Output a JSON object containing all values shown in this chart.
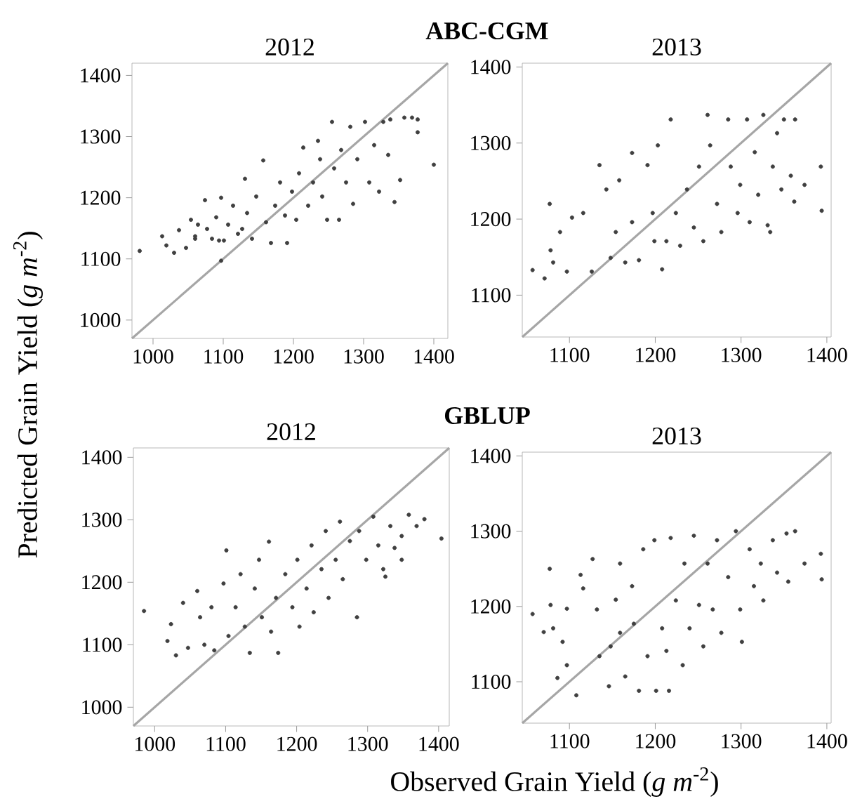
{
  "chart_data": [
    {
      "type": "scatter",
      "title": "2012",
      "ylabel": "Predicted Grain Yield (*g m*$^{-2}$)",
      "annotations": [
        "ABC-CGM"
      ],
      "marker": "circle",
      "xlim": [
        970,
        1420
      ],
      "ylim": [
        970,
        1420
      ],
      "xticks": [
        1000,
        1100,
        1200,
        1300,
        1400
      ],
      "yticks": [
        1000,
        1100,
        1200,
        1300,
        1400
      ],
      "series": [
        {
          "color": "#404040",
          "x": [
            981,
            1013,
            1019,
            1030,
            1037,
            1047,
            1054,
            1060,
            1064,
            1074,
            1077,
            1084,
            1090,
            1097,
            1097,
            1101,
            1107,
            1114,
            1121,
            1131,
            1134,
            1141,
            1147,
            1157,
            1161,
            1168,
            1174,
            1181,
            1188,
            1191,
            1198,
            1204,
            1208,
            1214,
            1221,
            1228,
            1235,
            1238,
            1241,
            1248,
            1255,
            1258,
            1265,
            1268,
            1275,
            1281,
            1285,
            1291,
            1302,
            1308,
            1315,
            1322,
            1328,
            1335,
            1338,
            1344,
            1352,
            1358,
            1369,
            1377,
            1377,
            1400,
            1060,
            1127,
            1094
          ],
          "values": [
            1113,
            1137,
            1122,
            1110,
            1147,
            1118,
            1164,
            1133,
            1156,
            1196,
            1149,
            1133,
            1168,
            1097,
            1200,
            1130,
            1156,
            1187,
            1141,
            1231,
            1175,
            1133,
            1202,
            1261,
            1160,
            1126,
            1187,
            1225,
            1171,
            1126,
            1210,
            1164,
            1240,
            1282,
            1187,
            1225,
            1293,
            1263,
            1202,
            1164,
            1324,
            1248,
            1164,
            1278,
            1225,
            1316,
            1190,
            1263,
            1324,
            1225,
            1286,
            1210,
            1324,
            1270,
            1328,
            1193,
            1229,
            1331,
            1331,
            1328,
            1307,
            1254,
            1137,
            1149,
            1130
          ]
        },
        {
          "type": "line",
          "marker": "none",
          "color": "#a6a6a6",
          "x": [
            970,
            1420
          ],
          "values": [
            970,
            1420
          ]
        }
      ]
    },
    {
      "type": "scatter",
      "title": "2013",
      "marker": "circle",
      "xlim": [
        1045,
        1405
      ],
      "ylim": [
        1045,
        1405
      ],
      "xticks": [
        1100,
        1200,
        1300,
        1400
      ],
      "yticks": [
        1100,
        1200,
        1300,
        1400
      ],
      "series": [
        {
          "color": "#404040",
          "x": [
            1057,
            1071,
            1077,
            1078,
            1081,
            1089,
            1097,
            1103,
            1116,
            1126,
            1135,
            1143,
            1148,
            1154,
            1158,
            1165,
            1173,
            1173,
            1181,
            1191,
            1197,
            1199,
            1203,
            1208,
            1213,
            1218,
            1224,
            1229,
            1237,
            1245,
            1251,
            1256,
            1261,
            1264,
            1272,
            1277,
            1285,
            1288,
            1296,
            1299,
            1307,
            1310,
            1316,
            1320,
            1326,
            1331,
            1334,
            1337,
            1342,
            1347,
            1350,
            1358,
            1362,
            1363,
            1374,
            1393,
            1394
          ],
          "values": [
            1133,
            1122,
            1220,
            1159,
            1143,
            1183,
            1131,
            1202,
            1208,
            1131,
            1271,
            1239,
            1149,
            1183,
            1251,
            1143,
            1287,
            1196,
            1146,
            1271,
            1208,
            1171,
            1297,
            1134,
            1171,
            1331,
            1208,
            1165,
            1239,
            1189,
            1269,
            1171,
            1337,
            1297,
            1220,
            1183,
            1331,
            1269,
            1208,
            1245,
            1331,
            1196,
            1288,
            1232,
            1337,
            1192,
            1183,
            1269,
            1313,
            1239,
            1331,
            1257,
            1223,
            1331,
            1245,
            1269,
            1211
          ]
        },
        {
          "type": "line",
          "marker": "none",
          "color": "#a6a6a6",
          "x": [
            1045,
            1405
          ],
          "values": [
            1045,
            1405
          ]
        }
      ]
    },
    {
      "type": "scatter",
      "title": "2012",
      "xlabel": "Observed Grain Yield (*g m*$^{-2}$)",
      "annotations": [
        "GBLUP"
      ],
      "marker": "circle",
      "xlim": [
        970,
        1415
      ],
      "ylim": [
        970,
        1415
      ],
      "xticks": [
        1000,
        1100,
        1200,
        1300,
        1400
      ],
      "yticks": [
        1000,
        1100,
        1200,
        1300,
        1400
      ],
      "series": [
        {
          "color": "#404040",
          "x": [
            985,
            1018,
            1023,
            1030,
            1040,
            1047,
            1060,
            1064,
            1070,
            1080,
            1084,
            1097,
            1101,
            1104,
            1114,
            1121,
            1127,
            1134,
            1141,
            1147,
            1151,
            1161,
            1164,
            1171,
            1174,
            1184,
            1194,
            1201,
            1204,
            1214,
            1221,
            1224,
            1235,
            1241,
            1245,
            1255,
            1261,
            1265,
            1275,
            1285,
            1288,
            1298,
            1308,
            1315,
            1322,
            1332,
            1338,
            1348,
            1358,
            1369,
            1380,
            1404,
            1348,
            1325
          ],
          "values": [
            1154,
            1106,
            1133,
            1083,
            1167,
            1095,
            1186,
            1144,
            1100,
            1160,
            1091,
            1198,
            1251,
            1114,
            1160,
            1213,
            1129,
            1087,
            1190,
            1236,
            1144,
            1265,
            1121,
            1175,
            1087,
            1213,
            1160,
            1236,
            1129,
            1190,
            1259,
            1152,
            1221,
            1282,
            1175,
            1236,
            1297,
            1205,
            1266,
            1144,
            1282,
            1236,
            1305,
            1259,
            1221,
            1290,
            1255,
            1274,
            1308,
            1290,
            1301,
            1270,
            1236,
            1209
          ]
        },
        {
          "type": "line",
          "marker": "none",
          "color": "#a6a6a6",
          "x": [
            970,
            1415
          ],
          "values": [
            970,
            1415
          ]
        }
      ]
    },
    {
      "type": "scatter",
      "title": "2013",
      "marker": "circle",
      "xlim": [
        1045,
        1405
      ],
      "ylim": [
        1045,
        1405
      ],
      "xticks": [
        1100,
        1200,
        1300,
        1400
      ],
      "yticks": [
        1100,
        1200,
        1300,
        1400
      ],
      "series": [
        {
          "color": "#404040",
          "x": [
            1057,
            1070,
            1077,
            1078,
            1081,
            1086,
            1092,
            1097,
            1097,
            1108,
            1113,
            1116,
            1127,
            1132,
            1135,
            1146,
            1148,
            1154,
            1159,
            1159,
            1165,
            1173,
            1175,
            1181,
            1186,
            1191,
            1199,
            1201,
            1208,
            1213,
            1216,
            1218,
            1224,
            1232,
            1234,
            1240,
            1245,
            1251,
            1256,
            1261,
            1267,
            1272,
            1277,
            1285,
            1294,
            1299,
            1301,
            1310,
            1315,
            1323,
            1326,
            1337,
            1342,
            1353,
            1355,
            1363,
            1374,
            1393,
            1394
          ],
          "values": [
            1190,
            1166,
            1250,
            1202,
            1171,
            1105,
            1153,
            1197,
            1122,
            1082,
            1242,
            1224,
            1263,
            1196,
            1134,
            1094,
            1147,
            1209,
            1257,
            1165,
            1107,
            1227,
            1177,
            1088,
            1276,
            1134,
            1288,
            1088,
            1171,
            1141,
            1088,
            1291,
            1208,
            1122,
            1257,
            1171,
            1294,
            1202,
            1147,
            1257,
            1196,
            1288,
            1165,
            1239,
            1300,
            1196,
            1153,
            1276,
            1227,
            1257,
            1208,
            1288,
            1245,
            1297,
            1233,
            1300,
            1257,
            1270,
            1236
          ]
        },
        {
          "type": "line",
          "marker": "none",
          "color": "#a6a6a6",
          "x": [
            1045,
            1405
          ],
          "values": [
            1045,
            1405
          ]
        }
      ]
    }
  ]
}
